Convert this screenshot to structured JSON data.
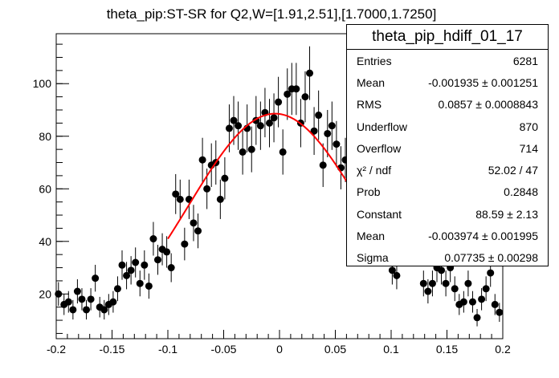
{
  "chart_data": {
    "type": "scatter",
    "title": "theta_pip:ST-SR for Q2,W=[1.91,2.51],[1.7000,1.7250]",
    "xlabel": "",
    "ylabel": "",
    "xlim": [
      -0.2,
      0.2
    ],
    "ylim": [
      3,
      119
    ],
    "x_ticks": [
      -0.2,
      -0.15,
      -0.1,
      -0.05,
      0,
      0.05,
      0.1,
      0.15,
      0.2
    ],
    "x_tick_labels": [
      "-0.2",
      "-0.15",
      "-0.1",
      "-0.05",
      "0",
      "0.05",
      "0.1",
      "0.15",
      "0.2"
    ],
    "y_ticks": [
      20,
      40,
      60,
      80,
      100
    ],
    "y_tick_labels": [
      "20",
      "40",
      "60",
      "80",
      "100"
    ],
    "grid": false,
    "legend": "top-right stats box",
    "colors": {
      "markers": "#000000",
      "fit": "#ff0000"
    },
    "series": [
      {
        "points": [
          [
            -0.198,
            20,
            4.5
          ],
          [
            -0.193,
            16,
            4.0
          ],
          [
            -0.189,
            17,
            4.1
          ],
          [
            -0.185,
            14,
            3.7
          ],
          [
            -0.181,
            21,
            4.6
          ],
          [
            -0.177,
            18,
            4.2
          ],
          [
            -0.173,
            14,
            3.7
          ],
          [
            -0.169,
            18,
            4.2
          ],
          [
            -0.165,
            26,
            5.1
          ],
          [
            -0.161,
            15,
            3.9
          ],
          [
            -0.157,
            14,
            3.7
          ],
          [
            -0.153,
            16,
            4.0
          ],
          [
            -0.149,
            17,
            4.1
          ],
          [
            -0.145,
            22,
            4.7
          ],
          [
            -0.141,
            31,
            5.6
          ],
          [
            -0.137,
            27,
            5.2
          ],
          [
            -0.133,
            29,
            5.4
          ],
          [
            -0.129,
            32,
            5.7
          ],
          [
            -0.125,
            24,
            4.9
          ],
          [
            -0.121,
            31,
            5.6
          ],
          [
            -0.117,
            23,
            4.8
          ],
          [
            -0.113,
            41,
            6.4
          ],
          [
            -0.109,
            33,
            5.7
          ],
          [
            -0.105,
            37,
            6.1
          ],
          [
            -0.101,
            36,
            6.0
          ],
          [
            -0.097,
            30,
            5.5
          ],
          [
            -0.093,
            58,
            7.6
          ],
          [
            -0.089,
            56,
            7.5
          ],
          [
            -0.085,
            39,
            6.2
          ],
          [
            -0.081,
            56,
            7.5
          ],
          [
            -0.077,
            47,
            6.9
          ],
          [
            -0.073,
            44,
            6.6
          ],
          [
            -0.069,
            71,
            8.4
          ],
          [
            -0.065,
            60,
            7.7
          ],
          [
            -0.061,
            69,
            8.3
          ],
          [
            -0.057,
            70,
            8.4
          ],
          [
            -0.053,
            56,
            7.5
          ],
          [
            -0.049,
            64,
            8.0
          ],
          [
            -0.045,
            83,
            9.1
          ],
          [
            -0.041,
            86,
            9.3
          ],
          [
            -0.037,
            84,
            9.2
          ],
          [
            -0.033,
            74,
            8.6
          ],
          [
            -0.029,
            83,
            9.1
          ],
          [
            -0.025,
            75,
            8.7
          ],
          [
            -0.021,
            86,
            9.3
          ],
          [
            -0.017,
            84,
            9.2
          ],
          [
            -0.013,
            89,
            9.4
          ],
          [
            -0.009,
            85,
            9.2
          ],
          [
            -0.005,
            87,
            9.3
          ],
          [
            -0.001,
            93,
            9.6
          ],
          [
            0.003,
            74,
            8.6
          ],
          [
            0.007,
            96,
            9.8
          ],
          [
            0.011,
            98,
            9.9
          ],
          [
            0.015,
            98,
            9.9
          ],
          [
            0.019,
            85,
            9.2
          ],
          [
            0.023,
            95,
            9.7
          ],
          [
            0.027,
            104,
            10.2
          ],
          [
            0.031,
            82,
            9.1
          ],
          [
            0.035,
            88,
            9.4
          ],
          [
            0.039,
            69,
            8.3
          ],
          [
            0.043,
            81,
            9.0
          ],
          [
            0.047,
            84,
            9.2
          ],
          [
            0.051,
            77,
            8.8
          ],
          [
            0.055,
            68,
            8.2
          ],
          [
            0.059,
            71,
            8.4
          ],
          [
            0.063,
            52,
            7.2
          ],
          [
            0.101,
            29,
            5.4
          ],
          [
            0.105,
            27,
            5.2
          ],
          [
            0.129,
            24,
            4.9
          ],
          [
            0.133,
            21,
            4.6
          ],
          [
            0.137,
            24,
            4.9
          ],
          [
            0.141,
            30,
            5.5
          ],
          [
            0.145,
            29,
            5.4
          ],
          [
            0.149,
            24,
            4.9
          ],
          [
            0.153,
            30,
            5.5
          ],
          [
            0.157,
            22,
            4.7
          ],
          [
            0.161,
            16,
            4.0
          ],
          [
            0.165,
            17,
            4.1
          ],
          [
            0.169,
            24,
            4.9
          ],
          [
            0.173,
            17,
            4.1
          ],
          [
            0.177,
            11,
            3.3
          ],
          [
            0.181,
            18,
            4.2
          ],
          [
            0.185,
            22,
            4.7
          ],
          [
            0.189,
            28,
            5.3
          ],
          [
            0.193,
            16,
            4.0
          ],
          [
            0.197,
            13,
            3.6
          ],
          [
            0.201,
            16,
            4.0
          ],
          [
            0.205,
            16,
            4.0
          ],
          [
            0.209,
            13,
            3.6
          ]
        ]
      },
      {
        "type": "line",
        "fit": "gaus",
        "constant": 88.59,
        "mean": -0.003974,
        "sigma": 0.07735,
        "x_range": [
          -0.1,
          0.1
        ]
      }
    ]
  },
  "stats": {
    "title": "theta_pip_hdiff_01_17",
    "rows": [
      {
        "label": "Entries",
        "value": "6281"
      },
      {
        "label": "Mean",
        "value": "-0.001935 ± 0.001251"
      },
      {
        "label": "RMS",
        "value": "0.0857 ± 0.0008843"
      },
      {
        "label": "Underflow",
        "value": "870"
      },
      {
        "label": "Overflow",
        "value": "714"
      },
      {
        "label": "χ² / ndf",
        "value": "52.02 / 47"
      },
      {
        "label": "Prob",
        "value": "0.2848"
      },
      {
        "label": "Constant",
        "value": "88.59 ± 2.13"
      },
      {
        "label": "Mean",
        "value": "-0.003974 ± 0.001995"
      },
      {
        "label": "Sigma",
        "value": "0.07735 ± 0.00298"
      }
    ]
  }
}
